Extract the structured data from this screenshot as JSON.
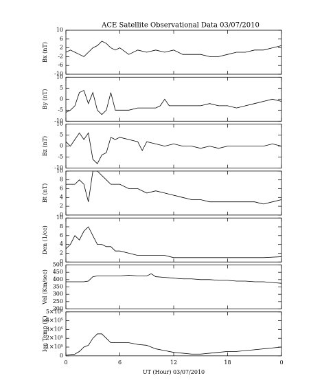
{
  "chart_data": [
    {
      "type": "line",
      "title": "ACE Satellite Observational Data  03/07/2010",
      "ylabel": "Bx (nT)",
      "xlim": [
        0,
        24
      ],
      "xticks": [
        0,
        6,
        12,
        18,
        24
      ],
      "ylim": [
        -10,
        10
      ],
      "yticks": [
        10,
        6,
        2,
        -2,
        -6,
        -10
      ],
      "series": [
        {
          "color": "#000000",
          "x": [
            0,
            0.5,
            1,
            1.5,
            2,
            2.5,
            3,
            3.5,
            4,
            4.5,
            5,
            5.5,
            6,
            7,
            8,
            9,
            10,
            11,
            12,
            13,
            14,
            15,
            16,
            17,
            18,
            19,
            20,
            21,
            22,
            23,
            24
          ],
          "values": [
            0,
            1,
            0,
            -1,
            -2,
            0,
            2,
            3,
            5,
            4,
            2,
            1,
            2,
            -1,
            1,
            0,
            1,
            0,
            1,
            -1,
            -1,
            -1,
            -2,
            -2,
            -1,
            0,
            0,
            1,
            1,
            2,
            3
          ]
        }
      ]
    },
    {
      "type": "line",
      "ylabel": "By (nT)",
      "xlim": [
        0,
        24
      ],
      "xticks": [
        0,
        6,
        12,
        18,
        24
      ],
      "ylim": [
        -10,
        10
      ],
      "yticks": [
        10,
        5,
        0,
        -5,
        -10
      ],
      "series": [
        {
          "color": "#000000",
          "x": [
            0,
            0.5,
            1,
            1.5,
            2,
            2.5,
            3,
            3.5,
            4,
            4.5,
            5,
            5.5,
            6,
            7,
            8,
            9,
            10,
            10.5,
            11,
            11.5,
            12,
            13,
            14,
            15,
            16,
            17,
            18,
            19,
            20,
            21,
            22,
            23,
            24
          ],
          "values": [
            -6,
            -5,
            -3,
            3,
            4,
            -2,
            3,
            -5,
            -7,
            -5,
            3,
            -5,
            -5,
            -5,
            -4,
            -4,
            -4,
            -3,
            0,
            -3,
            -3,
            -3,
            -3,
            -3,
            -2,
            -3,
            -3,
            -4,
            -3,
            -2,
            -1,
            0,
            -1
          ]
        }
      ]
    },
    {
      "type": "line",
      "ylabel": "Bz (nT)",
      "xlim": [
        0,
        24
      ],
      "xticks": [
        0,
        6,
        12,
        18,
        24
      ],
      "ylim": [
        -10,
        10
      ],
      "yticks": [
        10,
        5,
        0,
        -5,
        -10
      ],
      "series": [
        {
          "color": "#000000",
          "x": [
            0,
            0.5,
            1,
            1.5,
            2,
            2.5,
            3,
            3.5,
            4,
            4.5,
            5,
            5.5,
            6,
            7,
            8,
            8.5,
            9,
            10,
            11,
            12,
            13,
            14,
            15,
            16,
            17,
            18,
            19,
            20,
            21,
            22,
            23,
            24
          ],
          "values": [
            2,
            0,
            3,
            6,
            3,
            6,
            -6,
            -8,
            -4,
            -3,
            4,
            3,
            4,
            3,
            2,
            -2,
            2,
            1,
            0,
            1,
            0,
            0,
            -1,
            0,
            -1,
            0,
            0,
            0,
            0,
            0,
            1,
            0
          ]
        }
      ]
    },
    {
      "type": "line",
      "ylabel": "Bt (nT)",
      "xlim": [
        0,
        24
      ],
      "xticks": [
        0,
        6,
        12,
        18,
        24
      ],
      "ylim": [
        0,
        10
      ],
      "yticks": [
        10,
        8,
        6,
        4,
        2,
        0
      ],
      "series": [
        {
          "color": "#000000",
          "x": [
            0,
            1,
            1.5,
            2,
            2.5,
            3,
            3.5,
            4,
            4.5,
            5,
            5.5,
            6,
            7,
            8,
            9,
            10,
            11,
            12,
            13,
            14,
            15,
            16,
            17,
            18,
            19,
            20,
            21,
            22,
            23,
            24
          ],
          "values": [
            7,
            7,
            8,
            7,
            3,
            10,
            10,
            9,
            8,
            7,
            7,
            7,
            6,
            6,
            5,
            5.5,
            5,
            4.5,
            4,
            3.5,
            3.5,
            3,
            3,
            3,
            3,
            3,
            3,
            2.5,
            3,
            3.5
          ]
        }
      ]
    },
    {
      "type": "line",
      "ylabel": "Den (1/cc)",
      "xlim": [
        0,
        24
      ],
      "xticks": [
        0,
        6,
        12,
        18,
        24
      ],
      "ylim": [
        0,
        10
      ],
      "yticks": [
        10,
        8,
        6,
        4,
        2,
        0
      ],
      "series": [
        {
          "color": "#000000",
          "x": [
            0,
            0.5,
            1,
            1.5,
            2,
            2.5,
            3,
            3.5,
            4,
            4.5,
            5,
            5.5,
            6,
            7,
            8,
            9,
            10,
            11,
            12,
            14,
            16,
            18,
            20,
            22,
            24
          ],
          "values": [
            3,
            4,
            6,
            5,
            7,
            8,
            6,
            4,
            4,
            3.5,
            3.5,
            2.5,
            2.5,
            2,
            1.5,
            1.5,
            1.5,
            1.5,
            1,
            1,
            1,
            1,
            1,
            1,
            1.2
          ]
        }
      ]
    },
    {
      "type": "line",
      "ylabel": "Vel (Km/sec)",
      "xlim": [
        0,
        24
      ],
      "xticks": [
        0,
        6,
        12,
        18,
        24
      ],
      "ylim": [
        200,
        500
      ],
      "yticks": [
        500,
        450,
        400,
        350,
        300,
        250,
        200
      ],
      "series": [
        {
          "color": "#000000",
          "x": [
            0,
            1,
            2,
            2.5,
            3,
            3.5,
            4,
            5,
            6,
            7,
            8,
            9,
            9.5,
            10,
            11,
            12,
            13,
            14,
            15,
            16,
            17,
            18,
            19,
            20,
            21,
            22,
            23,
            24
          ],
          "values": [
            385,
            385,
            385,
            390,
            420,
            425,
            425,
            425,
            425,
            430,
            425,
            425,
            440,
            420,
            415,
            410,
            405,
            405,
            400,
            400,
            395,
            395,
            390,
            390,
            385,
            385,
            380,
            375
          ]
        }
      ]
    },
    {
      "type": "line",
      "ylabel": "Ion Temp (K)",
      "xlabel": "UT (Hour)  03/07/2010",
      "xlim": [
        0,
        24
      ],
      "xticks": [
        0,
        6,
        12,
        18,
        {
          "value": 24,
          "label": "0"
        }
      ],
      "ylim": [
        0,
        500000
      ],
      "yticks": [
        {
          "value": 500000,
          "label": "5×10⁵"
        },
        {
          "value": 400000,
          "label": "4×10⁵"
        },
        {
          "value": 300000,
          "label": "3×10⁵"
        },
        {
          "value": 200000,
          "label": "2×10⁵"
        },
        {
          "value": 100000,
          "label": "1×10⁵"
        },
        0
      ],
      "series": [
        {
          "color": "#000000",
          "x": [
            0,
            1,
            1.5,
            2,
            2.5,
            3,
            3.5,
            4,
            4.5,
            5,
            6,
            7,
            8,
            9,
            10,
            11,
            12,
            13,
            14,
            15,
            16,
            17,
            18,
            19,
            20,
            21,
            22,
            23,
            24
          ],
          "values": [
            10000,
            20000,
            50000,
            100000,
            120000,
            200000,
            250000,
            250000,
            200000,
            150000,
            150000,
            150000,
            130000,
            120000,
            80000,
            60000,
            40000,
            30000,
            20000,
            20000,
            30000,
            40000,
            50000,
            50000,
            60000,
            70000,
            80000,
            90000,
            100000
          ]
        }
      ]
    }
  ]
}
